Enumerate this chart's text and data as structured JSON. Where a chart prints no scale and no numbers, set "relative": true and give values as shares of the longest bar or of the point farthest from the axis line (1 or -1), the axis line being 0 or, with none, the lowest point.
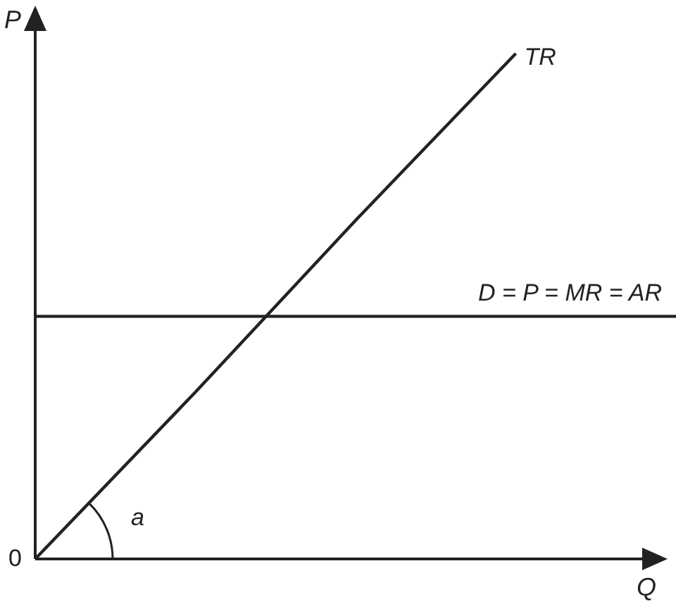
{
  "chart_data": {
    "type": "line",
    "relative": true,
    "xlabel": "Q",
    "ylabel": "P",
    "categories": [
      null,
      null,
      null,
      null,
      null
    ],
    "series": [
      {
        "name": "TR",
        "color": "#222222",
        "values": [
          0,
          0.33,
          0.67,
          1,
          null
        ]
      },
      {
        "name": "D = P = MR = AR",
        "color": "#222222",
        "values": [
          0.48,
          0.48,
          0.48,
          0.48,
          0.48
        ]
      }
    ],
    "annotations": [
      "0",
      "a"
    ]
  }
}
